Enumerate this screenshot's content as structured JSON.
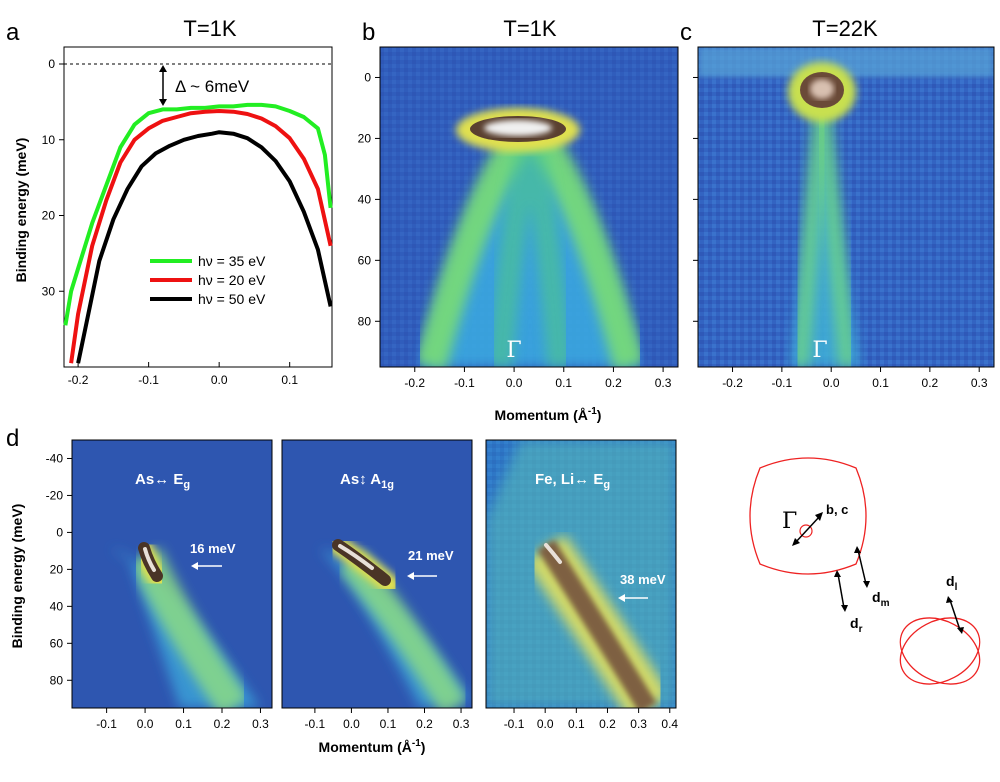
{
  "chart_data": [
    {
      "panel": "a",
      "type": "line",
      "title": "T=1K",
      "xlabel": "",
      "ylabel": "Binding energy (meV)",
      "xlim": [
        -0.22,
        0.16
      ],
      "ylim": [
        0,
        40
      ],
      "xticks": [
        -0.2,
        -0.1,
        0.0,
        0.1
      ],
      "yticks": [
        0,
        10,
        20,
        30
      ],
      "annotation": "Δ ~ 6meV",
      "legend_position": "bottom-right",
      "series": [
        {
          "name": "hν = 35 eV",
          "color": "#22ee22",
          "x": [
            -0.218,
            -0.21,
            -0.2,
            -0.18,
            -0.16,
            -0.14,
            -0.12,
            -0.1,
            -0.08,
            -0.06,
            -0.04,
            -0.02,
            0.0,
            0.02,
            0.04,
            0.06,
            0.08,
            0.1,
            0.12,
            0.14,
            0.15,
            0.158
          ],
          "y": [
            34.5,
            30,
            27,
            21,
            16,
            11,
            8,
            6.5,
            6,
            6,
            5.8,
            5.8,
            5.6,
            5.6,
            5.4,
            5.4,
            5.6,
            6.2,
            7,
            8.5,
            12,
            19
          ]
        },
        {
          "name": "hν = 20 eV",
          "color": "#ee1111",
          "x": [
            -0.21,
            -0.2,
            -0.18,
            -0.16,
            -0.14,
            -0.12,
            -0.1,
            -0.08,
            -0.06,
            -0.04,
            -0.02,
            0.0,
            0.02,
            0.04,
            0.06,
            0.08,
            0.1,
            0.12,
            0.14,
            0.158
          ],
          "y": [
            39.5,
            33,
            24,
            18,
            13,
            10,
            8.5,
            7.5,
            7,
            6.5,
            6.3,
            6.2,
            6.3,
            6.6,
            7.2,
            8.2,
            9.8,
            12.5,
            16.5,
            24
          ]
        },
        {
          "name": "hν = 50 eV",
          "color": "#000000",
          "x": [
            -0.2,
            -0.19,
            -0.17,
            -0.15,
            -0.13,
            -0.11,
            -0.09,
            -0.07,
            -0.05,
            -0.03,
            -0.01,
            0.0,
            0.02,
            0.04,
            0.06,
            0.08,
            0.1,
            0.12,
            0.14,
            0.158
          ],
          "y": [
            39.5,
            35,
            26,
            20.5,
            16.5,
            13.5,
            11.8,
            10.8,
            10,
            9.5,
            9.2,
            9,
            9.2,
            9.8,
            11,
            12.8,
            15.5,
            19.5,
            24.5,
            32
          ]
        }
      ]
    },
    {
      "panel": "b",
      "type": "heatmap",
      "title": "T=1K",
      "xlim": [
        -0.27,
        0.33
      ],
      "ylim": [
        -10,
        95
      ],
      "xticks": [
        -0.2,
        -0.1,
        0.0,
        0.1,
        0.2,
        0.3
      ],
      "yticks": [
        0,
        20,
        40,
        60,
        80
      ],
      "annotation": "Γ",
      "xlabel": "Momentum (Å⁻¹)"
    },
    {
      "panel": "c",
      "type": "heatmap",
      "title": "T=22K",
      "xlim": [
        -0.27,
        0.33
      ],
      "ylim": [
        -10,
        95
      ],
      "xticks": [
        -0.2,
        -0.1,
        0.0,
        0.1,
        0.2,
        0.3
      ],
      "annotation": "Γ"
    },
    {
      "panel": "d",
      "type": "heatmap",
      "ylabel": "Binding energy (meV)",
      "xlabel": "Momentum (Å⁻¹)",
      "ylim": [
        -50,
        95
      ],
      "yticks": [
        -40,
        -20,
        0,
        20,
        40,
        60,
        80
      ],
      "subpanels": [
        {
          "title": "As↔ E",
          "subscript": "g",
          "energy_label": "16 meV",
          "xlim": [
            -0.19,
            0.33
          ],
          "xticks": [
            -0.1,
            0.0,
            0.1,
            0.2,
            0.3
          ]
        },
        {
          "title": "As↕ A",
          "subscript": "1g",
          "energy_label": "21 meV",
          "xlim": [
            -0.19,
            0.33
          ],
          "xticks": [
            -0.1,
            0.0,
            0.1,
            0.2,
            0.3
          ]
        },
        {
          "title": "Fe, Li↔ E",
          "subscript": "g",
          "energy_label": "38 meV",
          "xlim": [
            -0.19,
            0.42
          ],
          "xticks": [
            -0.1,
            0.0,
            0.1,
            0.2,
            0.3,
            0.4
          ]
        }
      ]
    }
  ],
  "panel_letters": [
    "a",
    "b",
    "c",
    "d"
  ],
  "titles": {
    "a": "T=1K",
    "b": "T=1K",
    "c": "T=22K"
  },
  "legend": {
    "l1": "hν = 35 eV",
    "l2": "hν = 20 eV",
    "l3": "hν = 50 eV"
  },
  "annot": {
    "delta": "Δ ~ 6meV",
    "gamma": "Γ"
  },
  "axes": {
    "ylabel_a": "Binding energy (meV)",
    "ylabel_d": "Binding energy (meV)",
    "xlabel_top": "Momentum (Å",
    "xlabel_bottom": "Momentum (Å",
    "inv": "-1",
    "close": ")"
  },
  "dpanel": {
    "t1": "As↔ E",
    "s1": "g",
    "e1": "16 meV",
    "t2": "As↕ A",
    "s2": "1g",
    "e2": "21 meV",
    "t3": "Fe, Li↔ E",
    "s3": "g",
    "e3": "38 meV"
  },
  "schematic": {
    "gamma": "Γ",
    "bc": "b, c",
    "dm": "d",
    "dm_sub": "m",
    "dr": "d",
    "dr_sub": "r",
    "dl": "d",
    "dl_sub": "l"
  }
}
